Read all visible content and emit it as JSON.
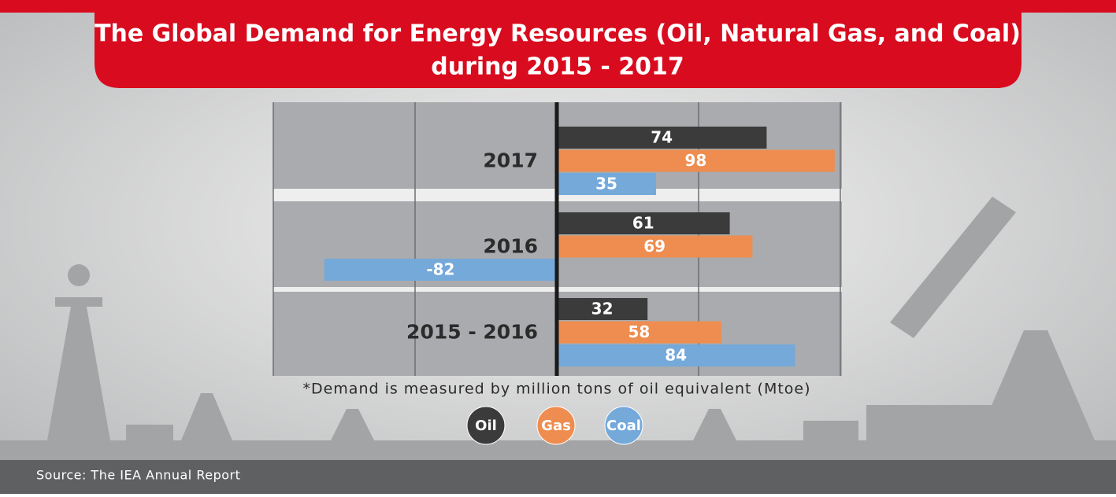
{
  "chart_data": {
    "type": "hbar",
    "title": [
      "The Global Demand for Energy Resources (Oil, Natural Gas, and Coal)",
      "during 2015 - 2017"
    ],
    "categories": [
      "2017",
      "2016",
      "2015 - 2016"
    ],
    "series": [
      {
        "name": "Oil",
        "color": "#3b3b3c",
        "values": [
          74,
          61,
          32
        ]
      },
      {
        "name": "Gas",
        "color": "#ee8d4f",
        "values": [
          98,
          69,
          58
        ]
      },
      {
        "name": "Coal",
        "color": "#74a9da",
        "values": [
          35,
          -82,
          84
        ]
      }
    ],
    "xlim": [
      -100,
      100
    ],
    "xticks": [
      -100,
      -50,
      0,
      50,
      100
    ],
    "grid": true,
    "note": "*Demand is measured by million tons of oil equivalent (Mtoe)",
    "source": "Source: The IEA Annual Report"
  }
}
